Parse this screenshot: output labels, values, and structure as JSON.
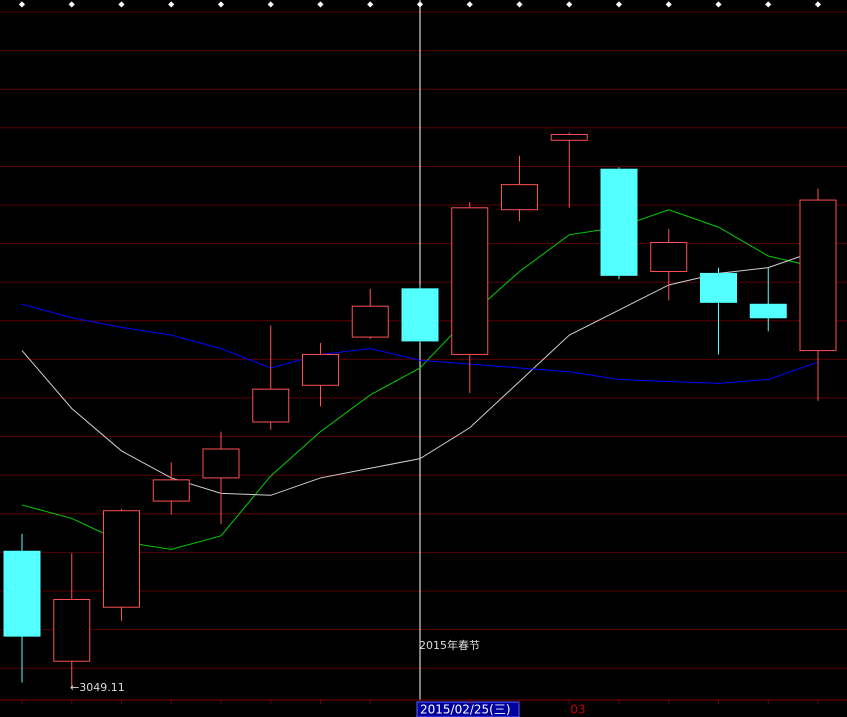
{
  "chart_data": {
    "type": "candlestick",
    "categories": [
      null,
      null,
      null,
      null,
      null,
      null,
      null,
      null,
      "2015/02/25(三)",
      null,
      null,
      "03",
      null,
      null,
      null,
      null,
      null
    ],
    "open": [
      3120,
      3063,
      3091,
      3146,
      3158,
      3187,
      3206,
      3231,
      3256,
      3222,
      3297,
      3333,
      3318,
      3265,
      3264,
      3248,
      3224
    ],
    "high": [
      3129,
      3119,
      3142,
      3166,
      3182,
      3237,
      3228,
      3256,
      3258,
      3301,
      3325,
      3337,
      3319,
      3287,
      3267,
      3267,
      3308
    ],
    "low": [
      3052,
      3049.11,
      3084,
      3139,
      3134,
      3183,
      3195,
      3230,
      3228,
      3202,
      3291,
      3298,
      3261,
      3250,
      3222,
      3234,
      3198
    ],
    "close": [
      3076,
      3095,
      3141,
      3157,
      3173,
      3204,
      3222,
      3247,
      3229,
      3298,
      3310,
      3336,
      3263,
      3280,
      3249,
      3241,
      3302
    ],
    "up_color": "#ff5050",
    "down_color": "#54ffff",
    "series": [
      {
        "color": "#00d000",
        "values": [
          3144,
          3137,
          3125,
          3121,
          3128,
          3159,
          3182,
          3201,
          3215,
          3242,
          3265,
          3284,
          3288,
          3297,
          3288,
          3273,
          3267
        ]
      },
      {
        "color": "#d0d0d0",
        "values": [
          3224,
          3194,
          3172,
          3158,
          3150,
          3149,
          3158,
          3163,
          3168,
          3184,
          3208,
          3232,
          3245,
          3258,
          3264,
          3267,
          3276
        ]
      },
      {
        "color": "#0000ff",
        "values": [
          3248,
          3241,
          3236,
          3232,
          3225,
          3215,
          3222,
          3225,
          3219,
          3217,
          3215,
          3213,
          3209,
          3208,
          3207,
          3209,
          3218
        ]
      }
    ],
    "ylim": [
      3042.9,
      3405.7
    ],
    "annotations": [
      "2015年春节",
      "←3049.11"
    ]
  }
}
